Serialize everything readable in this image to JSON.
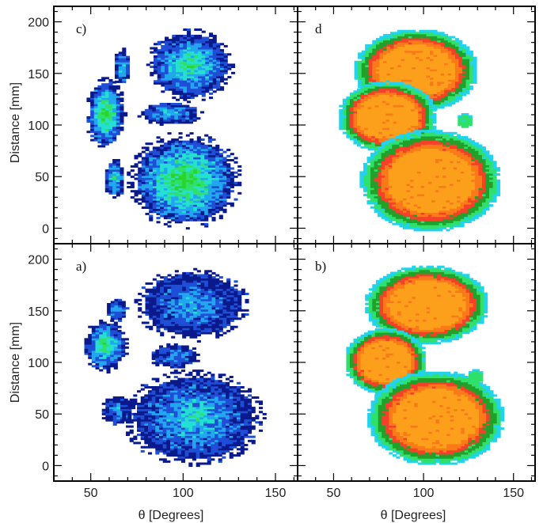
{
  "chart_data": {
    "type": "heatmap",
    "layout": "2x2",
    "xlabel": "θ   [Degrees]",
    "ylabel": "Distance [mm]",
    "xlim": [
      30,
      162
    ],
    "ylim": [
      -15,
      215
    ],
    "xticks": [
      50,
      100,
      150
    ],
    "yticks": [
      0,
      50,
      100,
      150,
      200
    ],
    "grid": false,
    "palettes": {
      "cool": [
        "#0a1a8c",
        "#1f4fd6",
        "#22a7ee",
        "#25e0d0",
        "#2fe06a",
        "#2ad42a"
      ],
      "warm": [
        "#22d3ee",
        "#2fe06a",
        "#22a02a",
        "#f5402a",
        "#fa7a1a",
        "#fca01c"
      ]
    },
    "panels": [
      {
        "label": "c)",
        "palette": "cool",
        "clusters": [
          {
            "x": 57,
            "y": 110,
            "rx": 9,
            "ry": 30,
            "peak": 0.95
          },
          {
            "x": 66,
            "y": 155,
            "rx": 4,
            "ry": 16,
            "peak": 0.6
          },
          {
            "x": 103,
            "y": 157,
            "rx": 20,
            "ry": 30,
            "peak": 0.75
          },
          {
            "x": 92,
            "y": 110,
            "rx": 15,
            "ry": 10,
            "peak": 0.55
          },
          {
            "x": 62,
            "y": 47,
            "rx": 5,
            "ry": 16,
            "peak": 0.7
          },
          {
            "x": 100,
            "y": 45,
            "rx": 26,
            "ry": 40,
            "peak": 0.95
          }
        ]
      },
      {
        "label": "d",
        "palette": "warm",
        "clusters": [
          {
            "x": 95,
            "y": 152,
            "rx": 30,
            "ry": 35,
            "peak": 1.0
          },
          {
            "x": 79,
            "y": 107,
            "rx": 24,
            "ry": 30,
            "peak": 1.0
          },
          {
            "x": 103,
            "y": 45,
            "rx": 34,
            "ry": 43,
            "peak": 1.0
          },
          {
            "x": 122,
            "y": 103,
            "rx": 4,
            "ry": 6,
            "peak": 0.25
          }
        ]
      },
      {
        "label": "a)",
        "palette": "cool",
        "clusters": [
          {
            "x": 57,
            "y": 115,
            "rx": 10,
            "ry": 22,
            "peak": 0.85
          },
          {
            "x": 63,
            "y": 150,
            "rx": 5,
            "ry": 10,
            "peak": 0.5
          },
          {
            "x": 104,
            "y": 155,
            "rx": 26,
            "ry": 30,
            "peak": 0.45
          },
          {
            "x": 94,
            "y": 105,
            "rx": 12,
            "ry": 10,
            "peak": 0.4
          },
          {
            "x": 64,
            "y": 52,
            "rx": 8,
            "ry": 12,
            "peak": 0.45
          },
          {
            "x": 105,
            "y": 45,
            "rx": 32,
            "ry": 40,
            "peak": 0.6
          }
        ]
      },
      {
        "label": "b)",
        "palette": "warm",
        "clusters": [
          {
            "x": 101,
            "y": 155,
            "rx": 30,
            "ry": 33,
            "peak": 1.0
          },
          {
            "x": 78,
            "y": 100,
            "rx": 20,
            "ry": 28,
            "peak": 1.0
          },
          {
            "x": 106,
            "y": 45,
            "rx": 33,
            "ry": 40,
            "peak": 1.0
          },
          {
            "x": 128,
            "y": 85,
            "rx": 4,
            "ry": 6,
            "peak": 0.25
          }
        ]
      }
    ]
  }
}
